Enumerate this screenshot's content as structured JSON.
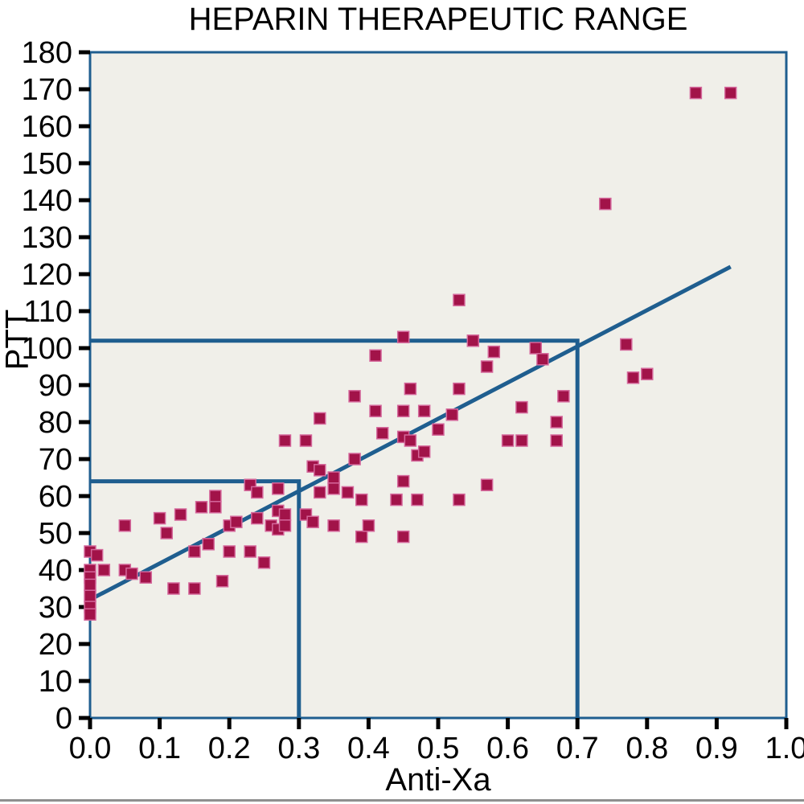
{
  "page": {
    "title": "HEPARIN THERAPEUTIC RANGE"
  },
  "chart_data": {
    "type": "scatter",
    "title": "HEPARIN THERAPEUTIC RANGE",
    "xlabel": "Anti-Xa",
    "ylabel": "PTT",
    "xlim": [
      0.0,
      1.0
    ],
    "ylim": [
      0,
      180
    ],
    "x_tick_labels": [
      "0.0",
      "0.1",
      "0.2",
      "0.3",
      "0.4",
      "0.5",
      "0.6",
      "0.7",
      "0.8",
      "0.9",
      "1.0"
    ],
    "y_tick_labels": [
      "0",
      "10",
      "20",
      "30",
      "40",
      "50",
      "60",
      "70",
      "80",
      "90",
      "100",
      "110",
      "120",
      "130",
      "140",
      "150",
      "160",
      "170",
      "180"
    ],
    "grid": false,
    "legend": false,
    "marker_shape": "square",
    "points": [
      [
        0.0,
        45
      ],
      [
        0.01,
        44
      ],
      [
        0.0,
        40
      ],
      [
        0.02,
        40
      ],
      [
        0.0,
        38
      ],
      [
        0.0,
        36
      ],
      [
        0.0,
        33
      ],
      [
        0.0,
        30
      ],
      [
        0.0,
        28
      ],
      [
        0.05,
        52
      ],
      [
        0.05,
        40
      ],
      [
        0.06,
        39
      ],
      [
        0.08,
        38
      ],
      [
        0.1,
        54
      ],
      [
        0.11,
        50
      ],
      [
        0.12,
        35
      ],
      [
        0.13,
        55
      ],
      [
        0.15,
        45
      ],
      [
        0.15,
        35
      ],
      [
        0.16,
        57
      ],
      [
        0.17,
        47
      ],
      [
        0.18,
        60
      ],
      [
        0.18,
        57
      ],
      [
        0.19,
        37
      ],
      [
        0.2,
        52
      ],
      [
        0.2,
        45
      ],
      [
        0.21,
        53
      ],
      [
        0.23,
        45
      ],
      [
        0.23,
        63
      ],
      [
        0.24,
        61
      ],
      [
        0.24,
        54
      ],
      [
        0.25,
        42
      ],
      [
        0.26,
        52
      ],
      [
        0.27,
        56
      ],
      [
        0.27,
        62
      ],
      [
        0.27,
        51
      ],
      [
        0.28,
        55
      ],
      [
        0.28,
        52
      ],
      [
        0.28,
        75
      ],
      [
        0.31,
        75
      ],
      [
        0.31,
        55
      ],
      [
        0.32,
        53
      ],
      [
        0.32,
        68
      ],
      [
        0.33,
        67
      ],
      [
        0.33,
        81
      ],
      [
        0.33,
        61
      ],
      [
        0.35,
        52
      ],
      [
        0.35,
        65
      ],
      [
        0.35,
        62
      ],
      [
        0.37,
        61
      ],
      [
        0.38,
        87
      ],
      [
        0.38,
        70
      ],
      [
        0.39,
        59
      ],
      [
        0.39,
        49
      ],
      [
        0.4,
        52
      ],
      [
        0.41,
        98
      ],
      [
        0.41,
        83
      ],
      [
        0.42,
        77
      ],
      [
        0.44,
        59
      ],
      [
        0.45,
        103
      ],
      [
        0.45,
        83
      ],
      [
        0.45,
        76
      ],
      [
        0.45,
        64
      ],
      [
        0.45,
        49
      ],
      [
        0.46,
        89
      ],
      [
        0.46,
        75
      ],
      [
        0.47,
        71
      ],
      [
        0.47,
        59
      ],
      [
        0.48,
        72
      ],
      [
        0.48,
        83
      ],
      [
        0.5,
        78
      ],
      [
        0.52,
        82
      ],
      [
        0.53,
        113
      ],
      [
        0.53,
        89
      ],
      [
        0.53,
        59
      ],
      [
        0.55,
        102
      ],
      [
        0.57,
        95
      ],
      [
        0.57,
        63
      ],
      [
        0.58,
        99
      ],
      [
        0.6,
        75
      ],
      [
        0.62,
        84
      ],
      [
        0.62,
        75
      ],
      [
        0.64,
        100
      ],
      [
        0.65,
        97
      ],
      [
        0.67,
        80
      ],
      [
        0.67,
        75
      ],
      [
        0.68,
        87
      ],
      [
        0.74,
        139
      ],
      [
        0.77,
        101
      ],
      [
        0.78,
        92
      ],
      [
        0.8,
        93
      ],
      [
        0.87,
        169
      ],
      [
        0.92,
        169
      ]
    ],
    "fit_line": {
      "x1": 0.0,
      "y1": 32,
      "x2": 0.92,
      "y2": 122
    },
    "reference_lines": [
      {
        "anti_xa": 0.3,
        "ptt": 64
      },
      {
        "anti_xa": 0.7,
        "ptt": 102
      }
    ],
    "colors": {
      "marker": "#A21349",
      "marker_edge": "#D4679B",
      "line": "#1F5E8F",
      "frame": "#1F5E8F",
      "plot_bg": "#F0EFE9",
      "tick": "#000000",
      "divider": "#8F8F8F"
    }
  }
}
